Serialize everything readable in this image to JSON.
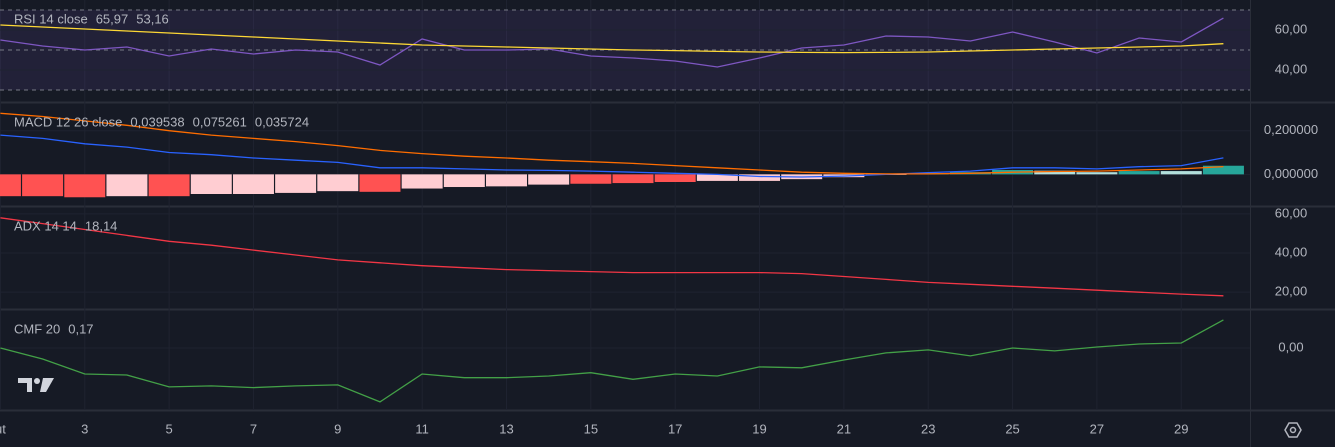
{
  "chart_data": [
    {
      "type": "line",
      "title": "RSI 14 close",
      "x": [
        1,
        2,
        3,
        4,
        5,
        6,
        7,
        8,
        9,
        10,
        11,
        12,
        13,
        14,
        15,
        16,
        17,
        18,
        19,
        20,
        21,
        22,
        23,
        24,
        25,
        26,
        27,
        28,
        29,
        30
      ],
      "series": [
        {
          "color": "#7e57c2",
          "values": [
            55,
            52,
            50,
            51.5,
            47,
            50.5,
            48,
            50,
            49,
            42.5,
            55.5,
            50,
            50,
            50.5,
            47,
            46,
            44.5,
            41.5,
            46,
            51,
            52.5,
            57,
            56.5,
            54.5,
            59,
            54,
            48.5,
            56,
            54,
            65.97
          ],
          "value_labels": [
            null,
            null,
            null,
            null,
            null,
            null,
            null,
            null,
            null,
            null,
            null,
            null,
            null,
            null,
            null,
            null,
            null,
            null,
            null,
            null,
            null,
            null,
            null,
            null,
            null,
            null,
            null,
            null,
            null,
            "65,97"
          ]
        },
        {
          "color": "#fdd835",
          "values": [
            62.5,
            61.5,
            60.5,
            59.5,
            58.5,
            57.5,
            56.5,
            55.5,
            54.5,
            53.5,
            52.5,
            52,
            51.5,
            51,
            50.5,
            50,
            49.7,
            49.3,
            49,
            48.8,
            48.7,
            48.8,
            49,
            49.5,
            50,
            50.5,
            51,
            51.5,
            52,
            53.16
          ],
          "value_labels": [
            null,
            null,
            null,
            null,
            null,
            null,
            null,
            null,
            null,
            null,
            null,
            null,
            null,
            null,
            null,
            null,
            null,
            null,
            null,
            null,
            null,
            null,
            null,
            null,
            null,
            null,
            null,
            null,
            null,
            "53,16"
          ]
        }
      ],
      "ylim": [
        75,
        24
      ],
      "yticks": [
        {
          "value": 60,
          "label": "60,00"
        },
        {
          "value": 40,
          "label": "40,00"
        }
      ],
      "hlines": [
        70,
        50,
        30
      ],
      "band": [
        30,
        70
      ],
      "band_color": "rgba(126,87,194,0.12)"
    },
    {
      "type": "line",
      "title": "MACD 12 26 close",
      "x": [
        1,
        2,
        3,
        4,
        5,
        6,
        7,
        8,
        9,
        10,
        11,
        12,
        13,
        14,
        15,
        16,
        17,
        18,
        19,
        20,
        21,
        22,
        23,
        24,
        25,
        26,
        27,
        28,
        29,
        30
      ],
      "series": [
        {
          "type": "bar",
          "color": "#26a69a",
          "colors": [
            "#ff5252",
            "#ff5252",
            "#ff5252",
            "#ffcdd2",
            "#ff5252",
            "#ffcdd2",
            "#ffcdd2",
            "#ffcdd2",
            "#ffcdd2",
            "#ff5252",
            "#ffcdd2",
            "#ffcdd2",
            "#ffcdd2",
            "#ffcdd2",
            "#ff5252",
            "#ff5252",
            "#ff5252",
            "#ffcdd2",
            "#ffcdd2",
            "#ffcdd2",
            "#ffcdd2",
            "#ffcdd2",
            "#26a69a",
            "#26a69a",
            "#26a69a",
            "#b2dfdb",
            "#b2dfdb",
            "#26a69a",
            "#b2dfdb",
            "#26a69a"
          ],
          "values": [
            -0.1,
            -0.1,
            -0.105,
            -0.1,
            -0.1,
            -0.09,
            -0.09,
            -0.085,
            -0.077,
            -0.08,
            -0.065,
            -0.058,
            -0.055,
            -0.047,
            -0.043,
            -0.04,
            -0.035,
            -0.03,
            -0.03,
            -0.022,
            -0.013,
            -0.002,
            0.006,
            0.01,
            0.02,
            0.017,
            0.01,
            0.015,
            0.015,
            0.039538
          ],
          "value_labels": [
            null,
            null,
            null,
            null,
            null,
            null,
            null,
            null,
            null,
            null,
            null,
            null,
            null,
            null,
            null,
            null,
            null,
            null,
            null,
            null,
            null,
            null,
            null,
            null,
            null,
            null,
            null,
            null,
            null,
            "0,039538"
          ]
        },
        {
          "color": "#2962ff",
          "values": [
            0.18,
            0.165,
            0.14,
            0.125,
            0.1,
            0.09,
            0.075,
            0.065,
            0.055,
            0.03,
            0.03,
            0.025,
            0.02,
            0.018,
            0.015,
            0.01,
            0.005,
            0,
            -0.01,
            -0.012,
            -0.008,
            0,
            0.008,
            0.015,
            0.03,
            0.03,
            0.025,
            0.035,
            0.04,
            0.075261
          ],
          "value_labels": [
            null,
            null,
            null,
            null,
            null,
            null,
            null,
            null,
            null,
            null,
            null,
            null,
            null,
            null,
            null,
            null,
            null,
            null,
            null,
            null,
            null,
            null,
            null,
            null,
            null,
            null,
            null,
            null,
            null,
            "0,075261"
          ]
        },
        {
          "color": "#ff6d00",
          "values": [
            0.28,
            0.265,
            0.245,
            0.225,
            0.2,
            0.18,
            0.165,
            0.15,
            0.132,
            0.11,
            0.095,
            0.083,
            0.075,
            0.065,
            0.058,
            0.05,
            0.04,
            0.03,
            0.02,
            0.01,
            0.005,
            0.002,
            0.002,
            0.005,
            0.01,
            0.013,
            0.015,
            0.02,
            0.025,
            0.035724
          ],
          "value_labels": [
            null,
            null,
            null,
            null,
            null,
            null,
            null,
            null,
            null,
            null,
            null,
            null,
            null,
            null,
            null,
            null,
            null,
            null,
            null,
            null,
            null,
            null,
            null,
            null,
            null,
            null,
            null,
            null,
            null,
            "0,035724"
          ]
        }
      ],
      "ylim": [
        0.327,
        -0.145
      ],
      "yticks": [
        {
          "value": 0.2,
          "label": "0,200000"
        },
        {
          "value": 0,
          "label": "0,000000"
        }
      ]
    },
    {
      "type": "line",
      "title": "ADX 14 14",
      "x": [
        1,
        2,
        3,
        4,
        5,
        6,
        7,
        8,
        9,
        10,
        11,
        12,
        13,
        14,
        15,
        16,
        17,
        18,
        19,
        20,
        21,
        22,
        23,
        24,
        25,
        26,
        27,
        28,
        29,
        30
      ],
      "series": [
        {
          "color": "#f23645",
          "values": [
            58,
            55,
            52,
            49,
            46,
            44,
            41.5,
            39,
            36.5,
            35,
            33.5,
            32.5,
            31.5,
            31,
            30.5,
            30,
            30,
            30,
            30,
            29.5,
            28,
            26.5,
            25,
            24,
            23,
            22,
            21,
            20,
            19,
            18.14
          ],
          "value_labels": [
            null,
            null,
            null,
            null,
            null,
            null,
            null,
            null,
            null,
            null,
            null,
            null,
            null,
            null,
            null,
            null,
            null,
            null,
            null,
            null,
            null,
            null,
            null,
            null,
            null,
            null,
            null,
            null,
            null,
            "18,14"
          ]
        }
      ],
      "ylim": [
        63.5,
        11.4
      ],
      "yticks": [
        {
          "value": 60,
          "label": "60,00"
        },
        {
          "value": 40,
          "label": "40,00"
        },
        {
          "value": 20,
          "label": "20,00"
        }
      ]
    },
    {
      "type": "line",
      "title": "CMF 20",
      "x": [
        1,
        2,
        3,
        4,
        5,
        6,
        7,
        8,
        9,
        10,
        11,
        12,
        13,
        14,
        15,
        16,
        17,
        18,
        19,
        20,
        21,
        22,
        23,
        24,
        25,
        26,
        27,
        28,
        29,
        30
      ],
      "series": [
        {
          "color": "#43a047",
          "values": [
            0,
            -0.067,
            -0.158,
            -0.164,
            -0.236,
            -0.23,
            -0.24,
            -0.23,
            -0.224,
            -0.327,
            -0.158,
            -0.18,
            -0.18,
            -0.17,
            -0.15,
            -0.19,
            -0.158,
            -0.17,
            -0.115,
            -0.12,
            -0.073,
            -0.03,
            -0.012,
            -0.048,
            0,
            -0.018,
            0.006,
            0.024,
            0.03,
            0.17
          ],
          "value_labels": [
            null,
            null,
            null,
            null,
            null,
            null,
            null,
            null,
            null,
            null,
            null,
            null,
            null,
            null,
            null,
            null,
            null,
            null,
            null,
            null,
            null,
            null,
            null,
            null,
            null,
            null,
            null,
            null,
            null,
            "0,17"
          ]
        }
      ],
      "ylim": [
        0.23,
        -0.376
      ],
      "yticks": [
        {
          "value": 0,
          "label": "0,00"
        }
      ],
      "hlines": [
        0
      ],
      "xlim": [
        0.99,
        30.63
      ],
      "xticks": [
        {
          "value": 1,
          "label": "ut"
        },
        3,
        5,
        7,
        9,
        11,
        13,
        15,
        17,
        19,
        21,
        23,
        25,
        27,
        29
      ]
    }
  ]
}
